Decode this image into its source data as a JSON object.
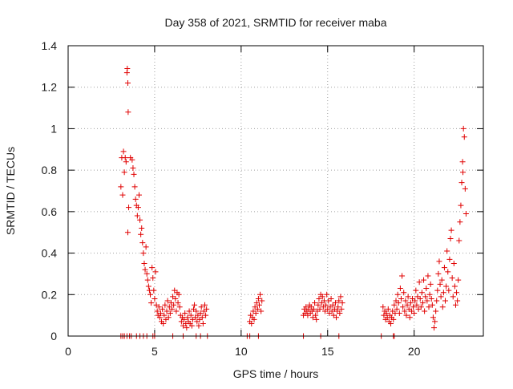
{
  "chart_data": {
    "type": "scatter",
    "title": "Day 358 of 2021, SRMTID for receiver maba",
    "xlabel": "GPS time / hours",
    "ylabel": "SRMTID / TECUs",
    "xlim": [
      0,
      24
    ],
    "ylim": [
      0,
      1.4
    ],
    "x_ticks": [
      {
        "value": 0,
        "label": "0"
      },
      {
        "value": 5,
        "label": "5"
      },
      {
        "value": 10,
        "label": "10"
      },
      {
        "value": 15,
        "label": "15"
      },
      {
        "value": 20,
        "label": "20"
      }
    ],
    "y_ticks": [
      {
        "value": 0,
        "label": "0"
      },
      {
        "value": 0.2,
        "label": "0.2"
      },
      {
        "value": 0.4,
        "label": "0.4"
      },
      {
        "value": 0.6,
        "label": "0.6"
      },
      {
        "value": 0.8,
        "label": "0.8"
      },
      {
        "value": 1.0,
        "label": "1"
      },
      {
        "value": 1.2,
        "label": "1.2"
      },
      {
        "value": 1.4,
        "label": "1.4"
      }
    ],
    "grid": true,
    "marker": "+",
    "series": [
      {
        "name": "maba",
        "color": "#e00000",
        "points": [
          [
            3.05,
            0.72
          ],
          [
            3.1,
            0.86
          ],
          [
            3.15,
            0.68
          ],
          [
            3.2,
            0.89
          ],
          [
            3.25,
            0.79
          ],
          [
            3.3,
            0.86
          ],
          [
            3.35,
            0.84
          ],
          [
            3.4,
            1.27
          ],
          [
            3.42,
            1.29
          ],
          [
            3.45,
            1.22
          ],
          [
            3.47,
            1.08
          ],
          [
            3.5,
            0.62
          ],
          [
            3.45,
            0.5
          ],
          [
            3.6,
            0.86
          ],
          [
            3.7,
            0.85
          ],
          [
            3.75,
            0.81
          ],
          [
            3.8,
            0.78
          ],
          [
            3.85,
            0.72
          ],
          [
            3.9,
            0.66
          ],
          [
            3.95,
            0.63
          ],
          [
            4.0,
            0.58
          ],
          [
            4.05,
            0.62
          ],
          [
            4.1,
            0.68
          ],
          [
            4.15,
            0.56
          ],
          [
            4.2,
            0.49
          ],
          [
            4.25,
            0.52
          ],
          [
            4.3,
            0.45
          ],
          [
            4.35,
            0.4
          ],
          [
            4.4,
            0.35
          ],
          [
            4.45,
            0.32
          ],
          [
            4.5,
            0.43
          ],
          [
            4.55,
            0.3
          ],
          [
            4.6,
            0.27
          ],
          [
            4.65,
            0.24
          ],
          [
            4.7,
            0.22
          ],
          [
            4.75,
            0.2
          ],
          [
            4.8,
            0.16
          ],
          [
            4.85,
            0.33
          ],
          [
            4.9,
            0.28
          ],
          [
            4.95,
            0.22
          ],
          [
            5.0,
            0.18
          ],
          [
            5.05,
            0.31
          ],
          [
            5.1,
            0.15
          ],
          [
            5.15,
            0.12
          ],
          [
            5.2,
            0.1
          ],
          [
            5.25,
            0.14
          ],
          [
            5.3,
            0.09
          ],
          [
            5.35,
            0.11
          ],
          [
            5.4,
            0.07
          ],
          [
            5.45,
            0.13
          ],
          [
            5.5,
            0.06
          ],
          [
            5.55,
            0.1
          ],
          [
            5.6,
            0.15
          ],
          [
            5.65,
            0.08
          ],
          [
            5.7,
            0.12
          ],
          [
            5.75,
            0.17
          ],
          [
            5.8,
            0.09
          ],
          [
            5.85,
            0.14
          ],
          [
            5.9,
            0.11
          ],
          [
            5.95,
            0.16
          ],
          [
            6.0,
            0.13
          ],
          [
            6.05,
            0.19
          ],
          [
            6.1,
            0.15
          ],
          [
            6.15,
            0.22
          ],
          [
            6.2,
            0.18
          ],
          [
            6.25,
            0.12
          ],
          [
            6.3,
            0.21
          ],
          [
            6.35,
            0.16
          ],
          [
            6.4,
            0.2
          ],
          [
            6.45,
            0.14
          ],
          [
            6.5,
            0.1
          ],
          [
            6.55,
            0.07
          ],
          [
            6.6,
            0.09
          ],
          [
            6.65,
            0.05
          ],
          [
            6.7,
            0.08
          ],
          [
            6.75,
            0.11
          ],
          [
            6.8,
            0.06
          ],
          [
            6.85,
            0.04
          ],
          [
            6.9,
            0.09
          ],
          [
            6.95,
            0.07
          ],
          [
            7.0,
            0.12
          ],
          [
            7.05,
            0.06
          ],
          [
            7.1,
            0.1
          ],
          [
            7.15,
            0.05
          ],
          [
            7.2,
            0.08
          ],
          [
            7.25,
            0.13
          ],
          [
            7.3,
            0.15
          ],
          [
            7.35,
            0.09
          ],
          [
            7.4,
            0.12
          ],
          [
            7.45,
            0.07
          ],
          [
            7.5,
            0.1
          ],
          [
            7.55,
            0.05
          ],
          [
            7.6,
            0.08
          ],
          [
            7.65,
            0.11
          ],
          [
            7.7,
            0.14
          ],
          [
            7.75,
            0.09
          ],
          [
            7.8,
            0.06
          ],
          [
            7.85,
            0.12
          ],
          [
            7.9,
            0.15
          ],
          [
            7.95,
            0.1
          ],
          [
            8.0,
            0.13
          ],
          [
            10.5,
            0.07
          ],
          [
            10.55,
            0.1
          ],
          [
            10.6,
            0.06
          ],
          [
            10.65,
            0.09
          ],
          [
            10.7,
            0.12
          ],
          [
            10.75,
            0.08
          ],
          [
            10.8,
            0.14
          ],
          [
            10.85,
            0.11
          ],
          [
            10.9,
            0.16
          ],
          [
            10.95,
            0.13
          ],
          [
            11.0,
            0.18
          ],
          [
            11.05,
            0.15
          ],
          [
            11.1,
            0.2
          ],
          [
            11.15,
            0.12
          ],
          [
            11.2,
            0.17
          ],
          [
            13.6,
            0.1
          ],
          [
            13.65,
            0.13
          ],
          [
            13.7,
            0.11
          ],
          [
            13.75,
            0.14
          ],
          [
            13.8,
            0.12
          ],
          [
            13.85,
            0.1
          ],
          [
            13.9,
            0.13
          ],
          [
            13.95,
            0.15
          ],
          [
            14.0,
            0.11
          ],
          [
            14.05,
            0.14
          ],
          [
            14.1,
            0.12
          ],
          [
            14.15,
            0.09
          ],
          [
            14.2,
            0.13
          ],
          [
            14.25,
            0.16
          ],
          [
            14.3,
            0.1
          ],
          [
            14.35,
            0.08
          ],
          [
            14.4,
            0.12
          ],
          [
            14.45,
            0.15
          ],
          [
            14.5,
            0.18
          ],
          [
            14.55,
            0.13
          ],
          [
            14.6,
            0.2
          ],
          [
            14.65,
            0.16
          ],
          [
            14.7,
            0.19
          ],
          [
            14.75,
            0.14
          ],
          [
            14.8,
            0.17
          ],
          [
            14.85,
            0.12
          ],
          [
            14.9,
            0.15
          ],
          [
            14.95,
            0.2
          ],
          [
            15.0,
            0.13
          ],
          [
            15.05,
            0.17
          ],
          [
            15.1,
            0.11
          ],
          [
            15.15,
            0.14
          ],
          [
            15.2,
            0.18
          ],
          [
            15.25,
            0.12
          ],
          [
            15.3,
            0.15
          ],
          [
            15.35,
            0.1
          ],
          [
            15.4,
            0.13
          ],
          [
            15.45,
            0.16
          ],
          [
            15.5,
            0.09
          ],
          [
            15.55,
            0.12
          ],
          [
            15.6,
            0.14
          ],
          [
            15.65,
            0.17
          ],
          [
            15.7,
            0.11
          ],
          [
            15.75,
            0.19
          ],
          [
            15.8,
            0.13
          ],
          [
            15.85,
            0.16
          ],
          [
            18.2,
            0.14
          ],
          [
            18.25,
            0.1
          ],
          [
            18.3,
            0.12
          ],
          [
            18.35,
            0.08
          ],
          [
            18.4,
            0.11
          ],
          [
            18.45,
            0.09
          ],
          [
            18.5,
            0.13
          ],
          [
            18.55,
            0.07
          ],
          [
            18.6,
            0.1
          ],
          [
            18.65,
            0.06
          ],
          [
            18.7,
            0.09
          ],
          [
            18.75,
            0.12
          ],
          [
            18.8,
            0.08
          ],
          [
            18.85,
            0.15
          ],
          [
            18.9,
            0.11
          ],
          [
            18.95,
            0.17
          ],
          [
            19.0,
            0.13
          ],
          [
            19.05,
            0.2
          ],
          [
            19.1,
            0.16
          ],
          [
            19.15,
            0.11
          ],
          [
            19.2,
            0.23
          ],
          [
            19.25,
            0.18
          ],
          [
            19.3,
            0.29
          ],
          [
            19.35,
            0.14
          ],
          [
            19.4,
            0.21
          ],
          [
            19.45,
            0.12
          ],
          [
            19.5,
            0.17
          ],
          [
            19.55,
            0.1
          ],
          [
            19.6,
            0.15
          ],
          [
            19.65,
            0.19
          ],
          [
            19.7,
            0.13
          ],
          [
            19.75,
            0.09
          ],
          [
            19.8,
            0.16
          ],
          [
            19.85,
            0.12
          ],
          [
            19.9,
            0.18
          ],
          [
            19.95,
            0.14
          ],
          [
            20.0,
            0.11
          ],
          [
            20.05,
            0.17
          ],
          [
            20.1,
            0.22
          ],
          [
            20.15,
            0.15
          ],
          [
            20.2,
            0.19
          ],
          [
            20.25,
            0.13
          ],
          [
            20.3,
            0.26
          ],
          [
            20.35,
            0.18
          ],
          [
            20.4,
            0.14
          ],
          [
            20.45,
            0.21
          ],
          [
            20.5,
            0.16
          ],
          [
            20.55,
            0.27
          ],
          [
            20.6,
            0.12
          ],
          [
            20.65,
            0.19
          ],
          [
            20.7,
            0.23
          ],
          [
            20.75,
            0.17
          ],
          [
            20.8,
            0.29
          ],
          [
            20.85,
            0.14
          ],
          [
            20.9,
            0.2
          ],
          [
            20.95,
            0.25
          ],
          [
            21.0,
            0.18
          ],
          [
            21.05,
            0.15
          ],
          [
            21.1,
            0.09
          ],
          [
            21.15,
            0.04
          ],
          [
            21.2,
            0.07
          ],
          [
            21.25,
            0.12
          ],
          [
            21.3,
            0.17
          ],
          [
            21.35,
            0.22
          ],
          [
            21.4,
            0.3
          ],
          [
            21.45,
            0.36
          ],
          [
            21.5,
            0.25
          ],
          [
            21.55,
            0.19
          ],
          [
            21.6,
            0.27
          ],
          [
            21.65,
            0.14
          ],
          [
            21.7,
            0.21
          ],
          [
            21.75,
            0.33
          ],
          [
            21.8,
            0.17
          ],
          [
            21.85,
            0.24
          ],
          [
            21.9,
            0.41
          ],
          [
            21.95,
            0.31
          ],
          [
            22.0,
            0.22
          ],
          [
            22.05,
            0.37
          ],
          [
            22.1,
            0.47
          ],
          [
            22.15,
            0.51
          ],
          [
            22.2,
            0.28
          ],
          [
            22.25,
            0.19
          ],
          [
            22.3,
            0.35
          ],
          [
            22.35,
            0.24
          ],
          [
            22.4,
            0.15
          ],
          [
            22.45,
            0.21
          ],
          [
            22.5,
            0.17
          ],
          [
            22.55,
            0.27
          ],
          [
            22.6,
            0.46
          ],
          [
            22.65,
            0.55
          ],
          [
            22.7,
            0.63
          ],
          [
            22.75,
            0.74
          ],
          [
            22.8,
            0.84
          ],
          [
            22.82,
            0.79
          ],
          [
            22.85,
            1.0
          ],
          [
            22.9,
            0.96
          ],
          [
            22.95,
            0.71
          ],
          [
            23.0,
            0.59
          ]
        ],
        "zero_points": [
          3.05,
          3.15,
          3.25,
          3.4,
          3.55,
          3.65,
          3.95,
          4.15,
          4.35,
          4.55,
          4.9,
          5.0,
          6.05,
          6.65,
          7.4,
          7.65,
          8.05,
          10.35,
          10.5,
          11.0,
          13.6,
          14.6,
          15.65,
          18.1,
          18.8,
          18.85
        ]
      }
    ]
  }
}
